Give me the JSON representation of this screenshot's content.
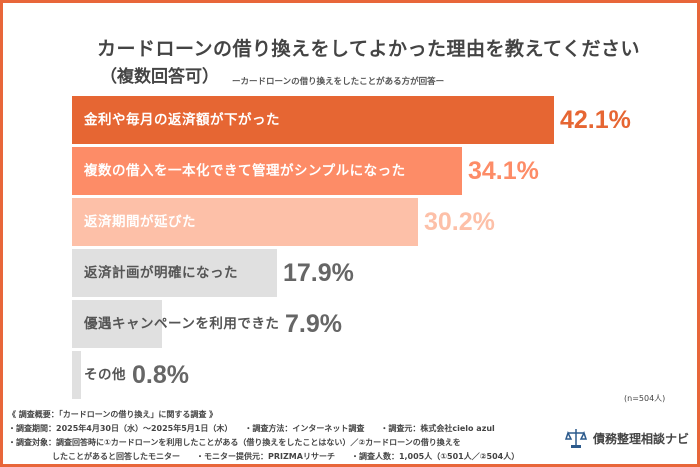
{
  "chart_data": {
    "type": "bar",
    "orientation": "horizontal",
    "title": "カードローンの借り換えをしてよかった理由を教えてください",
    "title_note": "（複数回答可）",
    "subtitle": "ーカードローンの借り換えをしたことがある方が回答ー",
    "categories": [
      "金利や毎月の返済額が下がった",
      "複数の借入を一本化できて管理がシンプルになった",
      "返済期間が延びた",
      "返済計画が明確になった",
      "優遇キャンペーンを利用できた",
      "その他"
    ],
    "values": [
      42.1,
      34.1,
      30.2,
      17.9,
      7.9,
      0.8
    ],
    "value_labels": [
      "42.1%",
      "34.1%",
      "30.2%",
      "17.9%",
      "7.9%",
      "0.8%"
    ],
    "bar_colors": [
      "#e66633",
      "#fd8c67",
      "#fdc0a8",
      "#e0e0e0",
      "#e0e0e0",
      "#e0e0e0"
    ],
    "label_colors": [
      "#ffffff",
      "#ffffff",
      "#ffffff",
      "#555555",
      "#555555",
      "#555555"
    ],
    "value_colors": [
      "#e66633",
      "#fd8c67",
      "#fdc0a8",
      "#666666",
      "#666666",
      "#666666"
    ],
    "sample_note": "(n=504人)",
    "grid": false
  },
  "footer": {
    "line1": "《 調査概要：「カードローンの借り換え」に関する調査 》",
    "line2": "・調査期間：2025年4月30日（水）～2025年5月1日（木）　　・調査方法：インターネット調査　　・調査元：株式会社cielo azul",
    "line3": "・調査対象：調査回答時に①カードローンを利用したことがある（借り換えをしたことはない）／②カードローンの借り換えを",
    "line4": "したことがあると回答したモニター　　・モニター提供元：PRIZMAリサーチ　　・調査人数：1,005人（①501人／②504人）"
  },
  "logo": {
    "text": "債務整理相談ナビ",
    "icon": "scales-of-justice-icon",
    "color": "#2c5a8c"
  },
  "frame_color": "#e8663a"
}
